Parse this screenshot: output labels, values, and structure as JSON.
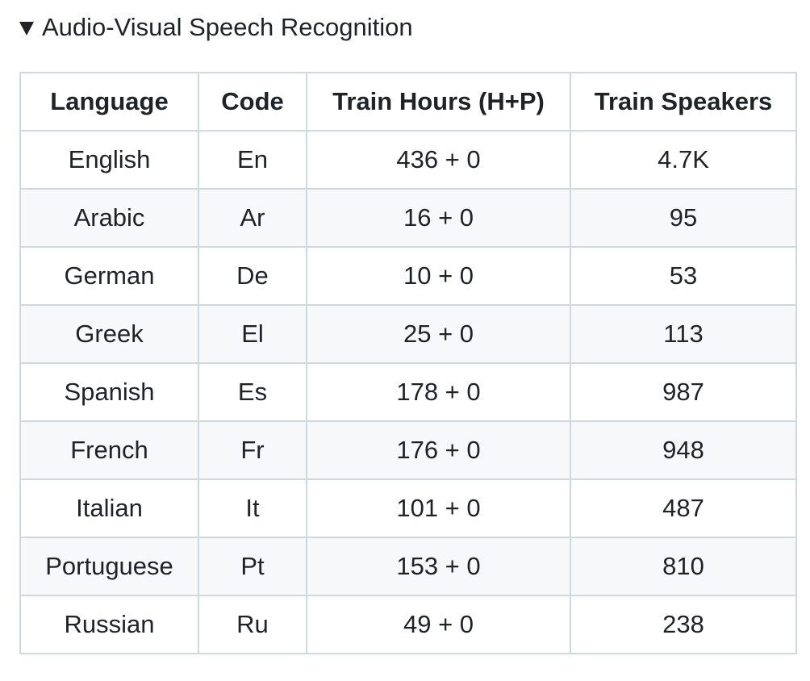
{
  "summary": {
    "title": "Audio-Visual Speech Recognition"
  },
  "table": {
    "headers": [
      "Language",
      "Code",
      "Train Hours (H+P)",
      "Train Speakers"
    ],
    "rows": [
      [
        "English",
        "En",
        "436 + 0",
        "4.7K"
      ],
      [
        "Arabic",
        "Ar",
        "16 + 0",
        "95"
      ],
      [
        "German",
        "De",
        "10 + 0",
        "53"
      ],
      [
        "Greek",
        "El",
        "25 + 0",
        "113"
      ],
      [
        "Spanish",
        "Es",
        "178 + 0",
        "987"
      ],
      [
        "French",
        "Fr",
        "176 + 0",
        "948"
      ],
      [
        "Italian",
        "It",
        "101 + 0",
        "487"
      ],
      [
        "Portuguese",
        "Pt",
        "153 + 0",
        "810"
      ],
      [
        "Russian",
        "Ru",
        "49 + 0",
        "238"
      ]
    ]
  }
}
